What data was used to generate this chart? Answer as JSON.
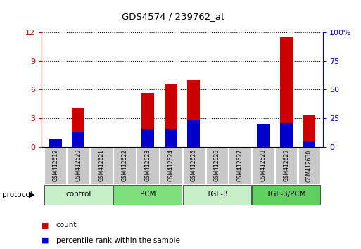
{
  "title": "GDS4574 / 239762_at",
  "samples": [
    "GSM412619",
    "GSM412620",
    "GSM412621",
    "GSM412622",
    "GSM412623",
    "GSM412624",
    "GSM412625",
    "GSM412626",
    "GSM412627",
    "GSM412628",
    "GSM412629",
    "GSM412630"
  ],
  "count_values": [
    0.05,
    4.1,
    0.0,
    0.0,
    5.7,
    6.6,
    7.0,
    0.0,
    0.0,
    0.0,
    11.5,
    3.3
  ],
  "percentile_values": [
    7.0,
    13.0,
    0.0,
    0.0,
    15.0,
    16.0,
    23.0,
    0.0,
    0.0,
    20.0,
    21.0,
    5.0
  ],
  "groups": [
    {
      "label": "control",
      "start": 0,
      "end": 3,
      "color": "#c8f0c8"
    },
    {
      "label": "PCM",
      "start": 3,
      "end": 6,
      "color": "#7de07d"
    },
    {
      "label": "TGF-β",
      "start": 6,
      "end": 9,
      "color": "#c8f0c8"
    },
    {
      "label": "TGF-β/PCM",
      "start": 9,
      "end": 12,
      "color": "#60d060"
    }
  ],
  "bar_color": "#cc0000",
  "percentile_color": "#0000cc",
  "ylim_left": [
    0,
    12
  ],
  "yticks_left": [
    0,
    3,
    6,
    9,
    12
  ],
  "ylim_right": [
    0,
    100
  ],
  "yticks_right": [
    0,
    25,
    50,
    75,
    100
  ],
  "left_axis_color": "#cc0000",
  "right_axis_color": "#0000cc",
  "bar_width": 0.55,
  "protocol_label": "protocol",
  "background_color": "#ffffff",
  "sample_bg_color": "#c8c8c8"
}
